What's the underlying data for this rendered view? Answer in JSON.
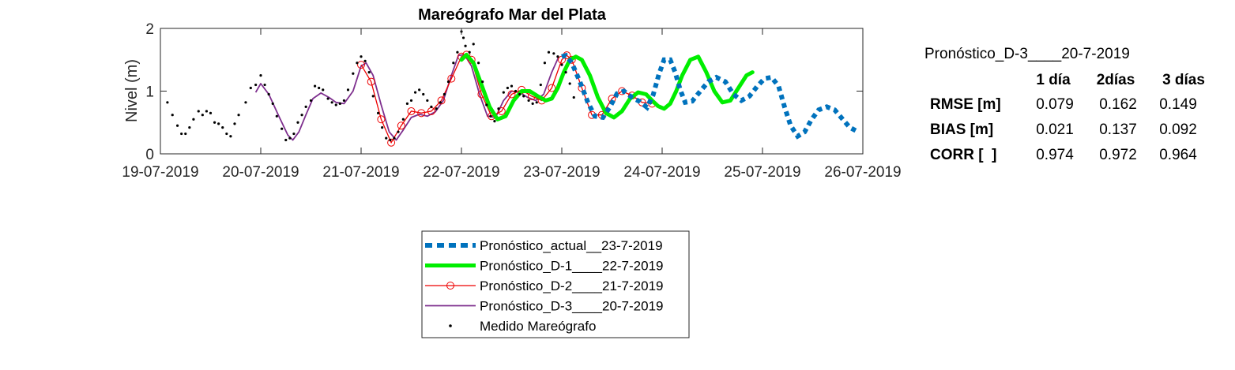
{
  "chart_data": {
    "type": "line",
    "title": "Mareógrafo Mar del Plata",
    "xlabel": "",
    "ylabel": "Nivel (m)",
    "xlim": [
      0,
      7
    ],
    "ylim": [
      0,
      2
    ],
    "x_unit": "days since 19-07-2019 00:00",
    "xticks": [
      0,
      1,
      2,
      3,
      4,
      5,
      6,
      7
    ],
    "xtick_labels": [
      "19-07-2019",
      "20-07-2019",
      "21-07-2019",
      "22-07-2019",
      "23-07-2019",
      "24-07-2019",
      "25-07-2019",
      "26-07-2019"
    ],
    "yticks": [
      0,
      1,
      2
    ],
    "ytick_labels": [
      "0",
      "1",
      "2"
    ],
    "legend_position": "below",
    "series": [
      {
        "name": "Pronóstico_actual__23-7-2019",
        "style": "dotted",
        "color": "#0072BD",
        "x": [
          4.0,
          4.04,
          4.1,
          4.18,
          4.26,
          4.33,
          4.41,
          4.48,
          4.55,
          4.62,
          4.7,
          4.78,
          4.85,
          4.91,
          4.97,
          5.02,
          5.08,
          5.13,
          5.18,
          5.23,
          5.3,
          5.38,
          5.46,
          5.54,
          5.63,
          5.71,
          5.79,
          5.87,
          5.95,
          6.02,
          6.09,
          6.16,
          6.22,
          6.28,
          6.35,
          6.42,
          6.49,
          6.56,
          6.64,
          6.72,
          6.8,
          6.87,
          6.93
        ],
        "y": [
          1.55,
          1.57,
          1.45,
          1.15,
          0.82,
          0.6,
          0.58,
          0.75,
          0.96,
          1.0,
          0.9,
          0.83,
          0.74,
          0.94,
          1.28,
          1.5,
          1.5,
          1.3,
          1.02,
          0.82,
          0.84,
          1.0,
          1.15,
          1.22,
          1.15,
          0.95,
          0.85,
          0.92,
          1.08,
          1.2,
          1.22,
          1.08,
          0.75,
          0.45,
          0.28,
          0.35,
          0.55,
          0.7,
          0.75,
          0.7,
          0.55,
          0.42,
          0.37
        ]
      },
      {
        "name": "Pronóstico_D-1____22-7-2019",
        "style": "solid-thick",
        "color": "#00EE00",
        "x": [
          3.0,
          3.05,
          3.12,
          3.2,
          3.28,
          3.36,
          3.44,
          3.52,
          3.6,
          3.68,
          3.76,
          3.84,
          3.9,
          3.96,
          4.02,
          4.08,
          4.14,
          4.2,
          4.28,
          4.36,
          4.44,
          4.52,
          4.6,
          4.68,
          4.76,
          4.84,
          4.9,
          4.96,
          5.02,
          5.08,
          5.14,
          5.2,
          5.28,
          5.36,
          5.44,
          5.52,
          5.6,
          5.68,
          5.76,
          5.84,
          5.9
        ],
        "y": [
          1.5,
          1.58,
          1.45,
          1.1,
          0.75,
          0.55,
          0.6,
          0.85,
          1.0,
          1.0,
          0.92,
          0.85,
          0.88,
          1.05,
          1.3,
          1.5,
          1.55,
          1.5,
          1.25,
          0.9,
          0.65,
          0.58,
          0.68,
          0.88,
          0.98,
          0.95,
          0.85,
          0.76,
          0.72,
          0.8,
          1.0,
          1.25,
          1.5,
          1.55,
          1.3,
          1.0,
          0.82,
          0.85,
          1.05,
          1.25,
          1.3
        ]
      },
      {
        "name": "Pronóstico_D-2____21-7-2019",
        "style": "solid-circles",
        "color": "#EE0000",
        "x": [
          2.0,
          2.1,
          2.2,
          2.3,
          2.4,
          2.5,
          2.6,
          2.7,
          2.8,
          2.9,
          3.0,
          3.05,
          3.1,
          3.2,
          3.3,
          3.4,
          3.5,
          3.6,
          3.7,
          3.8,
          3.9,
          4.0,
          4.05,
          4.1,
          4.2,
          4.3,
          4.4,
          4.5,
          4.6,
          4.7,
          4.8,
          4.9
        ],
        "y": [
          1.42,
          1.15,
          0.55,
          0.18,
          0.45,
          0.68,
          0.65,
          0.68,
          0.85,
          1.2,
          1.55,
          1.58,
          1.5,
          0.95,
          0.6,
          0.68,
          0.95,
          1.02,
          0.92,
          0.85,
          1.05,
          1.5,
          1.57,
          1.5,
          1.05,
          0.62,
          0.62,
          0.88,
          1.0,
          0.93,
          0.82,
          0.8
        ]
      },
      {
        "name": "Pronóstico_D-3____20-7-2019",
        "style": "solid",
        "color": "#7E2F8E",
        "x": [
          0.95,
          1.0,
          1.08,
          1.18,
          1.27,
          1.32,
          1.38,
          1.45,
          1.52,
          1.6,
          1.68,
          1.75,
          1.83,
          1.92,
          2.0,
          2.05,
          2.12,
          2.2,
          2.28,
          2.35,
          2.42,
          2.5,
          2.58,
          2.66,
          2.74,
          2.82,
          2.9,
          2.97,
          3.03,
          3.1,
          3.18,
          3.26,
          3.34,
          3.42,
          3.5,
          3.58,
          3.66,
          3.74,
          3.82,
          3.9,
          3.97
        ],
        "y": [
          0.98,
          1.12,
          0.95,
          0.6,
          0.3,
          0.22,
          0.35,
          0.62,
          0.88,
          0.97,
          0.9,
          0.82,
          0.8,
          1.0,
          1.4,
          1.45,
          1.25,
          0.78,
          0.35,
          0.22,
          0.38,
          0.58,
          0.63,
          0.6,
          0.67,
          0.85,
          1.25,
          1.57,
          1.58,
          1.4,
          0.95,
          0.6,
          0.58,
          0.85,
          1.0,
          0.98,
          0.9,
          0.85,
          0.95,
          1.3,
          1.55
        ]
      },
      {
        "name": "Medido Mareógrafo",
        "style": "markers",
        "color": "#000000",
        "x": [
          0.07,
          0.12,
          0.17,
          0.21,
          0.25,
          0.29,
          0.33,
          0.38,
          0.42,
          0.46,
          0.5,
          0.54,
          0.58,
          0.62,
          0.66,
          0.7,
          0.74,
          0.78,
          0.85,
          0.9,
          0.95,
          1.0,
          1.04,
          1.08,
          1.12,
          1.16,
          1.21,
          1.25,
          1.29,
          1.33,
          1.37,
          1.41,
          1.45,
          1.5,
          1.54,
          1.58,
          1.62,
          1.67,
          1.71,
          1.75,
          1.79,
          1.83,
          1.87,
          1.92,
          1.96,
          2.0,
          2.04,
          2.08,
          2.12,
          2.17,
          2.21,
          2.25,
          2.29,
          2.33,
          2.37,
          2.42,
          2.46,
          2.5,
          2.54,
          2.58,
          2.62,
          2.66,
          2.7,
          2.75,
          2.79,
          2.83,
          2.87,
          2.92,
          2.96,
          3.0,
          3.02,
          3.04,
          3.08,
          3.12,
          3.17,
          3.21,
          3.25,
          3.29,
          3.33,
          3.37,
          3.42,
          3.46,
          3.5,
          3.54,
          3.58,
          3.62,
          3.67,
          3.71,
          3.75,
          3.79,
          3.83,
          3.87,
          3.92,
          3.96,
          4.0,
          4.04,
          4.08,
          4.12
        ],
        "y": [
          0.82,
          0.62,
          0.45,
          0.32,
          0.32,
          0.42,
          0.55,
          0.68,
          0.62,
          0.68,
          0.65,
          0.5,
          0.48,
          0.42,
          0.32,
          0.28,
          0.48,
          0.62,
          0.82,
          1.05,
          1.1,
          1.25,
          1.1,
          0.95,
          0.8,
          0.6,
          0.4,
          0.22,
          0.25,
          0.32,
          0.5,
          0.62,
          0.75,
          0.85,
          1.08,
          1.05,
          1.02,
          0.88,
          0.82,
          0.78,
          0.8,
          0.85,
          1.02,
          1.28,
          1.45,
          1.55,
          1.48,
          1.3,
          0.92,
          0.65,
          0.42,
          0.25,
          0.22,
          0.25,
          0.35,
          0.55,
          0.8,
          0.85,
          0.98,
          1.02,
          0.95,
          0.85,
          0.75,
          0.72,
          0.82,
          0.95,
          1.15,
          1.45,
          1.62,
          1.95,
          1.85,
          1.72,
          1.62,
          1.75,
          1.45,
          1.15,
          0.78,
          0.6,
          0.52,
          0.72,
          0.98,
          1.05,
          1.08,
          1.0,
          0.95,
          0.92,
          0.85,
          0.8,
          0.82,
          1.1,
          1.45,
          1.62,
          1.6,
          1.55,
          1.42,
          1.3,
          1.12,
          0.9
        ]
      }
    ]
  },
  "stats_table": {
    "title": "Pronóstico_D-3____20-7-2019",
    "headers": [
      "1 día",
      "2días",
      "3 días"
    ],
    "rows": [
      {
        "label": "RMSE [m]",
        "values": [
          "0.079",
          "0.162",
          "0.149"
        ]
      },
      {
        "label": "BIAS [m]",
        "values": [
          "0.021",
          "0.137",
          "0.092"
        ]
      },
      {
        "label": "CORR [  ]",
        "values": [
          "0.974",
          "0.972",
          "0.964"
        ]
      }
    ]
  }
}
